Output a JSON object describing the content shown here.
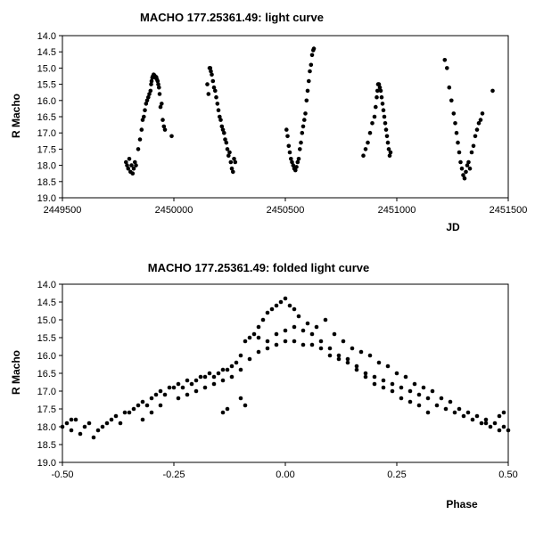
{
  "chart_data": [
    {
      "type": "scatter",
      "title": "MACHO 177.25361.49: light curve",
      "xlabel": "JD",
      "ylabel": "R Macho",
      "xlim": [
        2449500,
        2451500
      ],
      "ylim": [
        14.0,
        19.0
      ],
      "y_inverted": true,
      "grid": false,
      "marker_color": "#000000",
      "x_ticks": [
        "2449500",
        "2450000",
        "2450500",
        "2451000",
        "2451500"
      ],
      "y_ticks": [
        "14.0",
        "14.5",
        "15.0",
        "15.5",
        "16.0",
        "16.5",
        "17.0",
        "17.5",
        "18.0",
        "18.5",
        "19.0"
      ],
      "points": [
        [
          2449785,
          17.9
        ],
        [
          2449790,
          18.0
        ],
        [
          2449795,
          18.1
        ],
        [
          2449800,
          17.8
        ],
        [
          2449805,
          18.2
        ],
        [
          2449810,
          18.0
        ],
        [
          2449815,
          18.25
        ],
        [
          2449820,
          18.1
        ],
        [
          2449825,
          17.9
        ],
        [
          2449830,
          18.0
        ],
        [
          2449840,
          17.5
        ],
        [
          2449848,
          17.2
        ],
        [
          2449855,
          16.9
        ],
        [
          2449860,
          16.6
        ],
        [
          2449865,
          16.5
        ],
        [
          2449870,
          16.3
        ],
        [
          2449875,
          16.1
        ],
        [
          2449880,
          16.0
        ],
        [
          2449885,
          15.9
        ],
        [
          2449890,
          15.8
        ],
        [
          2449895,
          15.7
        ],
        [
          2449898,
          15.5
        ],
        [
          2449900,
          15.4
        ],
        [
          2449903,
          15.3
        ],
        [
          2449906,
          15.25
        ],
        [
          2449909,
          15.2
        ],
        [
          2449912,
          15.22
        ],
        [
          2449915,
          15.25
        ],
        [
          2449918,
          15.3
        ],
        [
          2449921,
          15.28
        ],
        [
          2449924,
          15.35
        ],
        [
          2449927,
          15.4
        ],
        [
          2449930,
          15.5
        ],
        [
          2449933,
          15.6
        ],
        [
          2449936,
          15.8
        ],
        [
          2449940,
          16.2
        ],
        [
          2449945,
          16.1
        ],
        [
          2449950,
          16.6
        ],
        [
          2449955,
          16.8
        ],
        [
          2449960,
          16.9
        ],
        [
          2449990,
          17.1
        ],
        [
          2450150,
          15.5
        ],
        [
          2450155,
          15.8
        ],
        [
          2450160,
          15.0
        ],
        [
          2450163,
          15.0
        ],
        [
          2450166,
          15.1
        ],
        [
          2450170,
          15.2
        ],
        [
          2450175,
          15.4
        ],
        [
          2450180,
          15.6
        ],
        [
          2450185,
          15.7
        ],
        [
          2450190,
          15.9
        ],
        [
          2450195,
          16.1
        ],
        [
          2450200,
          16.3
        ],
        [
          2450205,
          16.5
        ],
        [
          2450210,
          16.6
        ],
        [
          2450215,
          16.8
        ],
        [
          2450220,
          16.9
        ],
        [
          2450225,
          17.0
        ],
        [
          2450230,
          17.2
        ],
        [
          2450235,
          17.3
        ],
        [
          2450240,
          17.5
        ],
        [
          2450245,
          17.7
        ],
        [
          2450250,
          17.6
        ],
        [
          2450255,
          17.9
        ],
        [
          2450260,
          18.1
        ],
        [
          2450265,
          18.2
        ],
        [
          2450270,
          17.8
        ],
        [
          2450275,
          17.9
        ],
        [
          2450505,
          16.9
        ],
        [
          2450510,
          17.1
        ],
        [
          2450515,
          17.4
        ],
        [
          2450520,
          17.6
        ],
        [
          2450525,
          17.8
        ],
        [
          2450530,
          17.9
        ],
        [
          2450535,
          18.0
        ],
        [
          2450540,
          18.1
        ],
        [
          2450545,
          18.15
        ],
        [
          2450550,
          18.05
        ],
        [
          2450555,
          17.9
        ],
        [
          2450560,
          17.8
        ],
        [
          2450565,
          17.5
        ],
        [
          2450570,
          17.3
        ],
        [
          2450575,
          17.0
        ],
        [
          2450580,
          16.8
        ],
        [
          2450585,
          16.6
        ],
        [
          2450590,
          16.4
        ],
        [
          2450595,
          16.0
        ],
        [
          2450600,
          15.7
        ],
        [
          2450605,
          15.4
        ],
        [
          2450610,
          15.1
        ],
        [
          2450615,
          14.9
        ],
        [
          2450620,
          14.6
        ],
        [
          2450625,
          14.45
        ],
        [
          2450628,
          14.4
        ],
        [
          2450850,
          17.7
        ],
        [
          2450860,
          17.5
        ],
        [
          2450870,
          17.3
        ],
        [
          2450880,
          17.0
        ],
        [
          2450890,
          16.7
        ],
        [
          2450900,
          16.5
        ],
        [
          2450905,
          16.2
        ],
        [
          2450910,
          15.9
        ],
        [
          2450913,
          15.7
        ],
        [
          2450916,
          15.5
        ],
        [
          2450920,
          15.5
        ],
        [
          2450924,
          15.6
        ],
        [
          2450928,
          15.7
        ],
        [
          2450932,
          15.9
        ],
        [
          2450936,
          16.1
        ],
        [
          2450940,
          16.3
        ],
        [
          2450944,
          16.5
        ],
        [
          2450948,
          16.7
        ],
        [
          2450952,
          16.9
        ],
        [
          2450956,
          17.1
        ],
        [
          2450960,
          17.3
        ],
        [
          2450964,
          17.5
        ],
        [
          2450968,
          17.7
        ],
        [
          2450972,
          17.6
        ],
        [
          2451215,
          14.75
        ],
        [
          2451225,
          15.0
        ],
        [
          2451235,
          15.6
        ],
        [
          2451245,
          16.0
        ],
        [
          2451255,
          16.4
        ],
        [
          2451262,
          16.7
        ],
        [
          2451268,
          17.0
        ],
        [
          2451274,
          17.3
        ],
        [
          2451280,
          17.6
        ],
        [
          2451286,
          17.9
        ],
        [
          2451292,
          18.1
        ],
        [
          2451298,
          18.3
        ],
        [
          2451304,
          18.4
        ],
        [
          2451310,
          18.2
        ],
        [
          2451316,
          18.0
        ],
        [
          2451322,
          17.9
        ],
        [
          2451328,
          18.1
        ],
        [
          2451336,
          17.6
        ],
        [
          2451344,
          17.4
        ],
        [
          2451352,
          17.1
        ],
        [
          2451360,
          16.9
        ],
        [
          2451368,
          16.7
        ],
        [
          2451376,
          16.6
        ],
        [
          2451384,
          16.4
        ],
        [
          2451430,
          15.7
        ]
      ]
    },
    {
      "type": "scatter",
      "title": "MACHO 177.25361.49: folded light curve",
      "xlabel": "Phase",
      "ylabel": "R Macho",
      "xlim": [
        -0.5,
        0.5
      ],
      "ylim": [
        14.0,
        19.0
      ],
      "y_inverted": true,
      "grid": false,
      "marker_color": "#000000",
      "x_ticks": [
        "-0.50",
        "-0.25",
        "0.00",
        "0.25",
        "0.50"
      ],
      "y_ticks": [
        "14.0",
        "14.5",
        "15.0",
        "15.5",
        "16.0",
        "16.5",
        "17.0",
        "17.5",
        "18.0",
        "18.5",
        "19.0"
      ],
      "points": [
        [
          -0.5,
          18.0
        ],
        [
          -0.49,
          17.9
        ],
        [
          -0.48,
          18.1
        ],
        [
          -0.47,
          17.8
        ],
        [
          -0.46,
          18.2
        ],
        [
          -0.45,
          18.0
        ],
        [
          -0.44,
          17.9
        ],
        [
          -0.43,
          18.3
        ],
        [
          -0.42,
          18.1
        ],
        [
          -0.41,
          18.0
        ],
        [
          -0.4,
          17.9
        ],
        [
          -0.39,
          17.8
        ],
        [
          -0.38,
          17.7
        ],
        [
          -0.37,
          17.9
        ],
        [
          -0.36,
          17.6
        ],
        [
          -0.35,
          17.6
        ],
        [
          -0.34,
          17.5
        ],
        [
          -0.33,
          17.4
        ],
        [
          -0.32,
          17.3
        ],
        [
          -0.31,
          17.4
        ],
        [
          -0.3,
          17.2
        ],
        [
          -0.29,
          17.1
        ],
        [
          -0.28,
          17.0
        ],
        [
          -0.27,
          17.1
        ],
        [
          -0.26,
          16.9
        ],
        [
          -0.25,
          16.9
        ],
        [
          -0.24,
          16.8
        ],
        [
          -0.23,
          16.9
        ],
        [
          -0.22,
          16.7
        ],
        [
          -0.21,
          16.8
        ],
        [
          -0.2,
          16.7
        ],
        [
          -0.19,
          16.6
        ],
        [
          -0.18,
          16.6
        ],
        [
          -0.17,
          16.5
        ],
        [
          -0.16,
          16.6
        ],
        [
          -0.15,
          16.5
        ],
        [
          -0.14,
          16.4
        ],
        [
          -0.13,
          16.4
        ],
        [
          -0.12,
          16.3
        ],
        [
          -0.11,
          16.2
        ],
        [
          -0.1,
          16.0
        ],
        [
          -0.09,
          15.6
        ],
        [
          -0.08,
          15.5
        ],
        [
          -0.07,
          15.4
        ],
        [
          -0.06,
          15.2
        ],
        [
          -0.05,
          15.0
        ],
        [
          -0.04,
          14.8
        ],
        [
          -0.03,
          14.7
        ],
        [
          -0.02,
          14.6
        ],
        [
          -0.01,
          14.5
        ],
        [
          0.0,
          14.4
        ],
        [
          0.01,
          14.6
        ],
        [
          0.02,
          14.7
        ],
        [
          0.03,
          14.9
        ],
        [
          0.05,
          15.1
        ],
        [
          0.07,
          15.2
        ],
        [
          0.09,
          15.0
        ],
        [
          0.11,
          15.4
        ],
        [
          0.13,
          15.6
        ],
        [
          0.15,
          15.8
        ],
        [
          0.17,
          15.9
        ],
        [
          0.19,
          16.0
        ],
        [
          0.21,
          16.2
        ],
        [
          0.23,
          16.3
        ],
        [
          0.25,
          16.5
        ],
        [
          0.27,
          16.6
        ],
        [
          0.29,
          16.8
        ],
        [
          0.31,
          16.9
        ],
        [
          0.33,
          17.0
        ],
        [
          0.35,
          17.2
        ],
        [
          0.37,
          17.3
        ],
        [
          0.39,
          17.5
        ],
        [
          0.41,
          17.6
        ],
        [
          0.43,
          17.7
        ],
        [
          0.45,
          17.8
        ],
        [
          0.47,
          17.9
        ],
        [
          0.49,
          18.0
        ],
        [
          0.5,
          18.1
        ],
        [
          -0.06,
          15.5
        ],
        [
          -0.04,
          15.6
        ],
        [
          -0.02,
          15.4
        ],
        [
          0.0,
          15.3
        ],
        [
          0.02,
          15.2
        ],
        [
          0.04,
          15.3
        ],
        [
          0.06,
          15.4
        ],
        [
          0.08,
          15.6
        ],
        [
          0.1,
          15.8
        ],
        [
          0.12,
          16.0
        ],
        [
          0.14,
          16.1
        ],
        [
          0.16,
          16.3
        ],
        [
          0.18,
          16.5
        ],
        [
          0.2,
          16.6
        ],
        [
          0.22,
          16.7
        ],
        [
          0.24,
          16.8
        ],
        [
          0.26,
          16.9
        ],
        [
          0.28,
          17.0
        ],
        [
          0.3,
          17.1
        ],
        [
          0.32,
          17.2
        ],
        [
          0.34,
          17.4
        ],
        [
          0.36,
          17.5
        ],
        [
          0.38,
          17.6
        ],
        [
          0.4,
          17.7
        ],
        [
          0.42,
          17.8
        ],
        [
          0.44,
          17.9
        ],
        [
          0.46,
          18.0
        ],
        [
          0.48,
          18.1
        ],
        [
          -0.32,
          17.8
        ],
        [
          -0.3,
          17.6
        ],
        [
          -0.28,
          17.4
        ],
        [
          -0.24,
          17.2
        ],
        [
          -0.22,
          17.1
        ],
        [
          -0.2,
          17.0
        ],
        [
          -0.18,
          16.9
        ],
        [
          -0.16,
          16.8
        ],
        [
          -0.14,
          16.7
        ],
        [
          -0.12,
          16.6
        ],
        [
          -0.1,
          16.4
        ],
        [
          -0.08,
          16.1
        ],
        [
          -0.06,
          15.9
        ],
        [
          -0.04,
          15.8
        ],
        [
          -0.02,
          15.7
        ],
        [
          0.0,
          15.6
        ],
        [
          0.02,
          15.6
        ],
        [
          0.04,
          15.7
        ],
        [
          0.06,
          15.7
        ],
        [
          0.08,
          15.8
        ],
        [
          0.1,
          16.0
        ],
        [
          0.12,
          16.1
        ],
        [
          0.14,
          16.2
        ],
        [
          0.16,
          16.4
        ],
        [
          0.18,
          16.6
        ],
        [
          0.2,
          16.8
        ],
        [
          0.22,
          16.9
        ],
        [
          0.24,
          17.0
        ],
        [
          0.26,
          17.2
        ],
        [
          0.28,
          17.3
        ],
        [
          -0.1,
          17.2
        ],
        [
          -0.09,
          17.4
        ],
        [
          -0.14,
          17.6
        ],
        [
          -0.13,
          17.5
        ],
        [
          0.3,
          17.4
        ],
        [
          0.32,
          17.6
        ],
        [
          0.45,
          17.9
        ],
        [
          0.48,
          17.7
        ],
        [
          0.49,
          17.6
        ],
        [
          -0.48,
          17.8
        ]
      ]
    }
  ]
}
